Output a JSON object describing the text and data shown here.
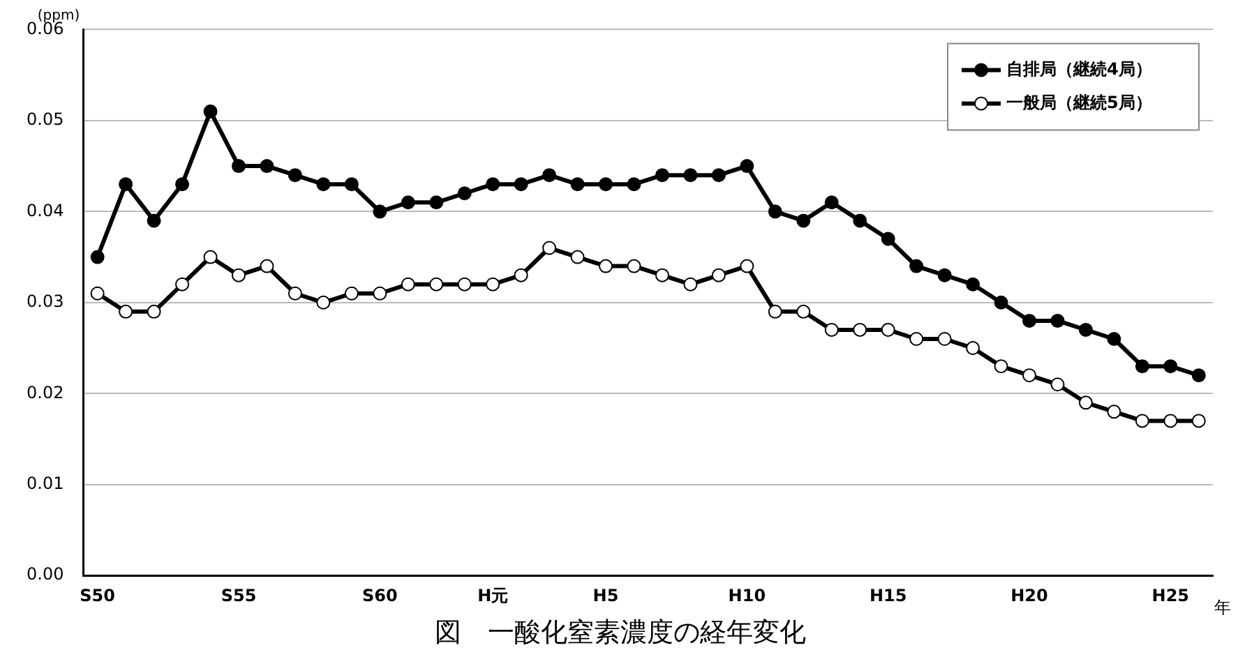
{
  "chart_data": {
    "type": "line",
    "title": "図　一酸化窒素濃度の経年変化",
    "xlabel": "年",
    "ylabel": "(ppm)",
    "categories": [
      "S50",
      null,
      null,
      null,
      null,
      "S55",
      null,
      null,
      null,
      null,
      "S60",
      null,
      null,
      null,
      "H元",
      null,
      null,
      null,
      "H5",
      null,
      null,
      null,
      null,
      "H10",
      null,
      null,
      null,
      null,
      "H15",
      null,
      null,
      null,
      null,
      "H20",
      null,
      null,
      null,
      null,
      "H25",
      null
    ],
    "series": [
      {
        "name": "自排局（継続4局）",
        "color": "#000000",
        "values": [
          0.035,
          0.043,
          0.039,
          0.043,
          0.051,
          0.045,
          0.045,
          0.044,
          0.043,
          0.043,
          0.04,
          0.041,
          0.041,
          0.042,
          0.043,
          0.043,
          0.044,
          0.043,
          0.043,
          0.043,
          0.044,
          0.044,
          0.044,
          0.045,
          0.04,
          0.039,
          0.041,
          0.039,
          0.037,
          0.034,
          0.033,
          0.032,
          0.03,
          0.028,
          0.028,
          0.027,
          0.026,
          0.023,
          0.023,
          0.022
        ]
      },
      {
        "name": "一般局（継続5局）",
        "color": "#000000",
        "values": [
          0.031,
          0.029,
          0.029,
          0.032,
          0.035,
          0.033,
          0.034,
          0.031,
          0.03,
          0.031,
          0.031,
          0.032,
          0.032,
          0.032,
          0.032,
          0.033,
          0.036,
          0.035,
          0.034,
          0.034,
          0.033,
          0.032,
          0.033,
          0.034,
          0.029,
          0.029,
          0.027,
          0.027,
          0.027,
          0.026,
          0.026,
          0.025,
          0.023,
          0.022,
          0.021,
          0.019,
          0.018,
          0.017,
          0.017,
          0.017
        ]
      }
    ],
    "ylim": [
      0,
      0.06
    ],
    "yticks": [
      {
        "value": 0,
        "label": "0.00"
      },
      {
        "value": 0.01,
        "label": "0.01"
      },
      {
        "value": 0.02,
        "label": "0.02"
      },
      {
        "value": 0.03,
        "label": "0.03"
      },
      {
        "value": 0.04,
        "label": "0.04"
      },
      {
        "value": 0.05,
        "label": "0.05"
      },
      {
        "value": 0.06,
        "label": "0.06"
      }
    ],
    "grid": "y",
    "legend": "top right",
    "marker": "circle",
    "line_style": "solid"
  }
}
